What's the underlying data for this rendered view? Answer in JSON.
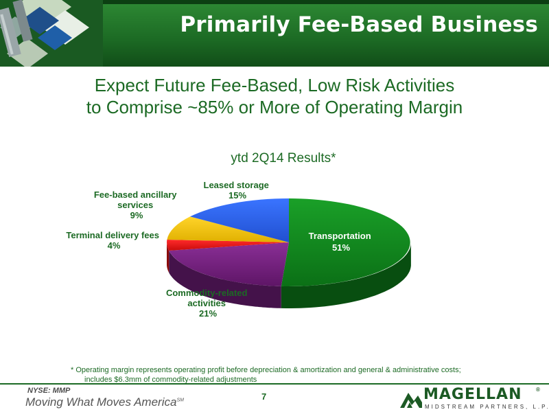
{
  "header": {
    "title": "Primarily Fee-Based Business",
    "colors": {
      "green": "#1c6a24",
      "blue": "#1f5fa8"
    }
  },
  "subtitle": {
    "line1": "Expect Future Fee-Based, Low Risk Activities",
    "line2": "to Comprise ~85% or More of Operating Margin"
  },
  "chart_data": {
    "type": "pie",
    "title": "ytd 2Q14 Results*",
    "unit": "%",
    "slices": [
      {
        "label": "Transportation",
        "value": 51,
        "value_label": "51%",
        "color": "#0d7d1a"
      },
      {
        "label": "Commodity-related activities",
        "value": 21,
        "value_label": "21%",
        "color": "#6e1d78"
      },
      {
        "label": "Terminal delivery fees",
        "value": 4,
        "value_label": "4%",
        "color": "#e01010"
      },
      {
        "label": "Fee-based ancillary services",
        "value": 9,
        "value_label": "9%",
        "color": "#f2c410"
      },
      {
        "label": "Leased storage",
        "value": 15,
        "value_label": "15%",
        "color": "#2b5fe0"
      }
    ]
  },
  "labels": {
    "transportation": {
      "name": "Transportation",
      "pct": "51%"
    },
    "commodity": {
      "line1": "Commodity-related",
      "line2": "activities",
      "pct": "21%"
    },
    "terminal": {
      "name": "Terminal delivery fees",
      "pct": "4%"
    },
    "ancillary": {
      "line1": "Fee-based ancillary",
      "line2": "services",
      "pct": "9%"
    },
    "storage": {
      "name": "Leased storage",
      "pct": "15%"
    }
  },
  "footnote": {
    "line1": "* Operating margin represents operating profit before depreciation & amortization and general & administrative costs;",
    "line2": "includes $6.3mm of commodity-related adjustments"
  },
  "footer": {
    "ticker": "NYSE: MMP",
    "tagline": "Moving What Moves America",
    "tagline_mark": "SM",
    "page_number": "7",
    "brand_name": "MAGELLAN",
    "brand_reg": "®",
    "brand_sub": "MIDSTREAM PARTNERS, L.P."
  }
}
